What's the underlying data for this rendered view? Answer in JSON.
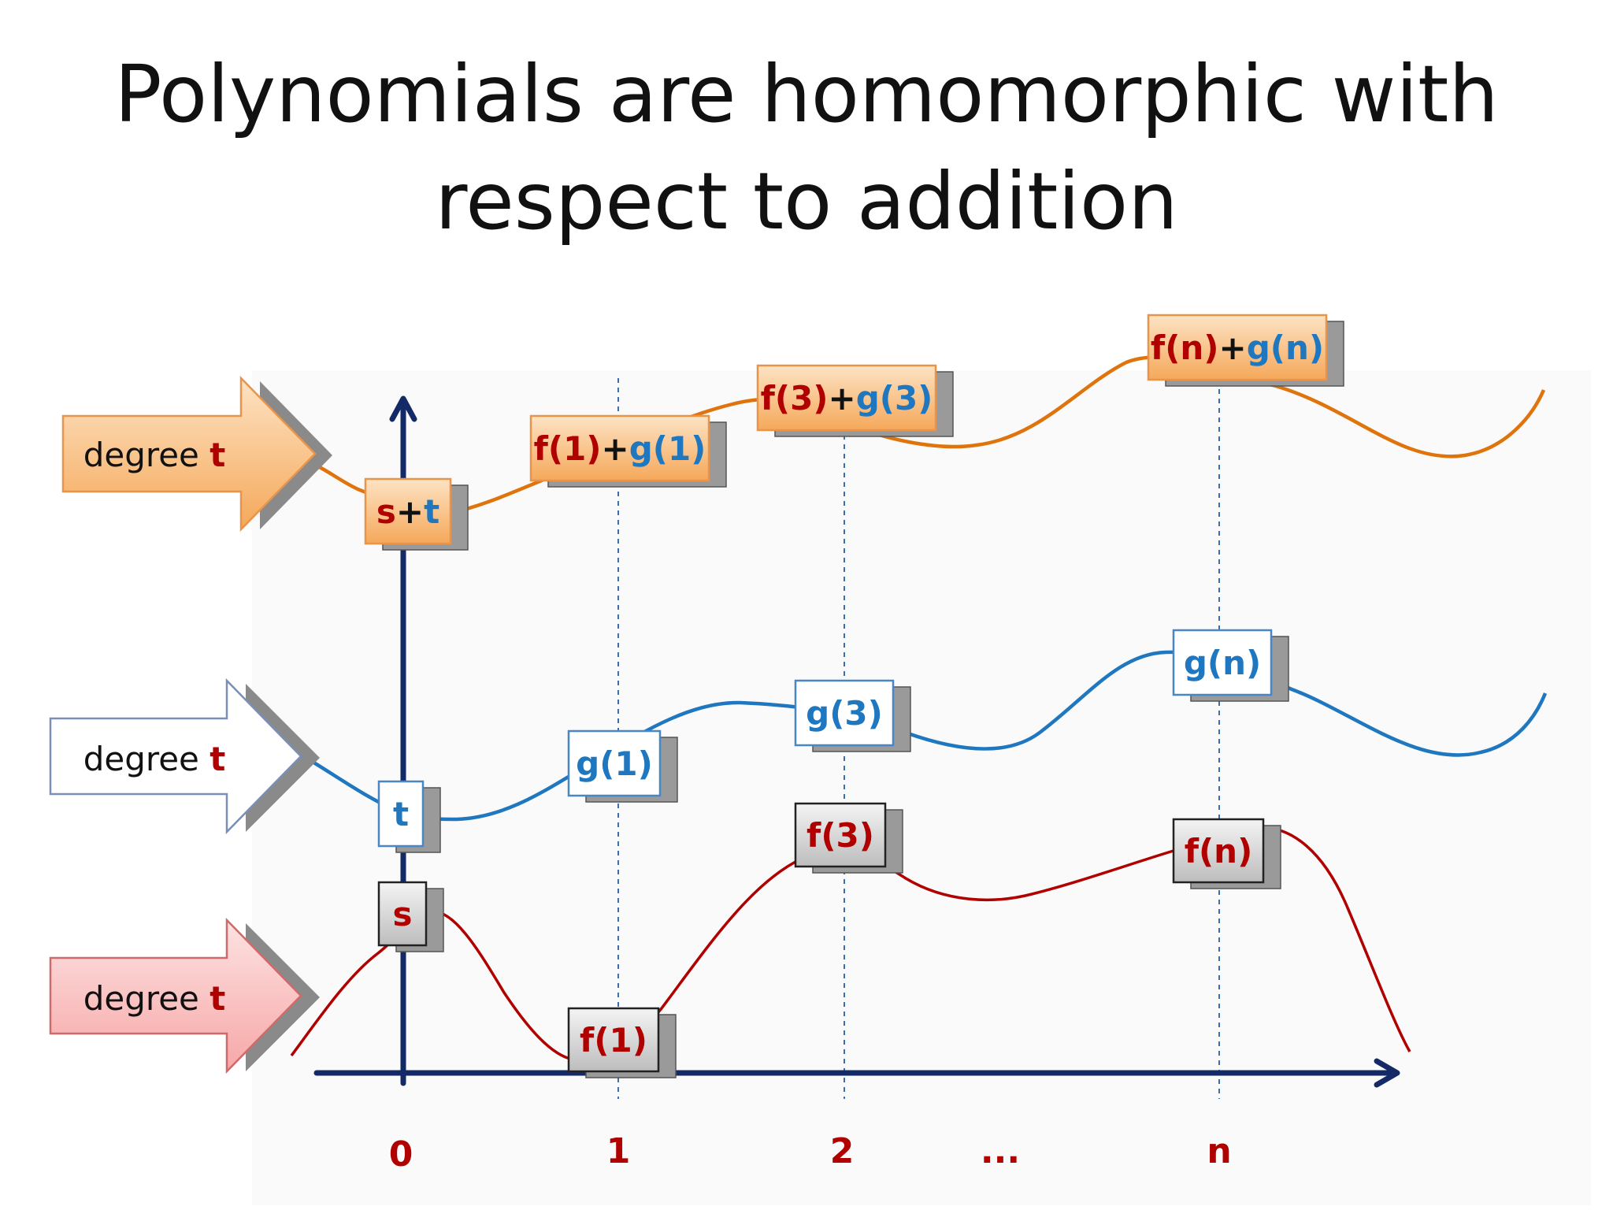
{
  "title": {
    "line1": "Polynomials are homomorphic with",
    "line2": "respect to addition"
  },
  "colors": {
    "dark_red": "#b00000",
    "blue": "#1f77c0",
    "orange_curve": "#e0740c",
    "axis": "#142a66",
    "dashed": "#3a6fb0"
  },
  "arrows": [
    {
      "id": "sum",
      "text": "degree ",
      "emph": "t",
      "style": "orange"
    },
    {
      "id": "g",
      "text": "degree ",
      "emph": "t",
      "style": "white"
    },
    {
      "id": "f",
      "text": "degree ",
      "emph": "t",
      "style": "pink"
    }
  ],
  "axis_labels": [
    "0",
    "1",
    "2",
    "...",
    "n"
  ],
  "boxes": {
    "sum": [
      {
        "parts": [
          [
            "s",
            "red"
          ],
          [
            "+",
            "black"
          ],
          [
            "t",
            "blue"
          ]
        ]
      },
      {
        "parts": [
          [
            "f(1)",
            "red"
          ],
          [
            "+",
            "black"
          ],
          [
            "g(1)",
            "blue"
          ]
        ]
      },
      {
        "parts": [
          [
            "f(3)",
            "red"
          ],
          [
            "+",
            "black"
          ],
          [
            "g(3)",
            "blue"
          ]
        ]
      },
      {
        "parts": [
          [
            "f(n)",
            "red"
          ],
          [
            "+",
            "black"
          ],
          [
            "g(n)",
            "blue"
          ]
        ]
      }
    ],
    "g": [
      {
        "parts": [
          [
            "t",
            "blue"
          ]
        ]
      },
      {
        "parts": [
          [
            "g(1)",
            "blue"
          ]
        ]
      },
      {
        "parts": [
          [
            "g(3)",
            "blue"
          ]
        ]
      },
      {
        "parts": [
          [
            "g(n)",
            "blue"
          ]
        ]
      }
    ],
    "f": [
      {
        "parts": [
          [
            "s",
            "red"
          ]
        ]
      },
      {
        "parts": [
          [
            "f(1)",
            "red"
          ]
        ]
      },
      {
        "parts": [
          [
            "f(3)",
            "red"
          ]
        ]
      },
      {
        "parts": [
          [
            "f(n)",
            "red"
          ]
        ]
      }
    ]
  }
}
